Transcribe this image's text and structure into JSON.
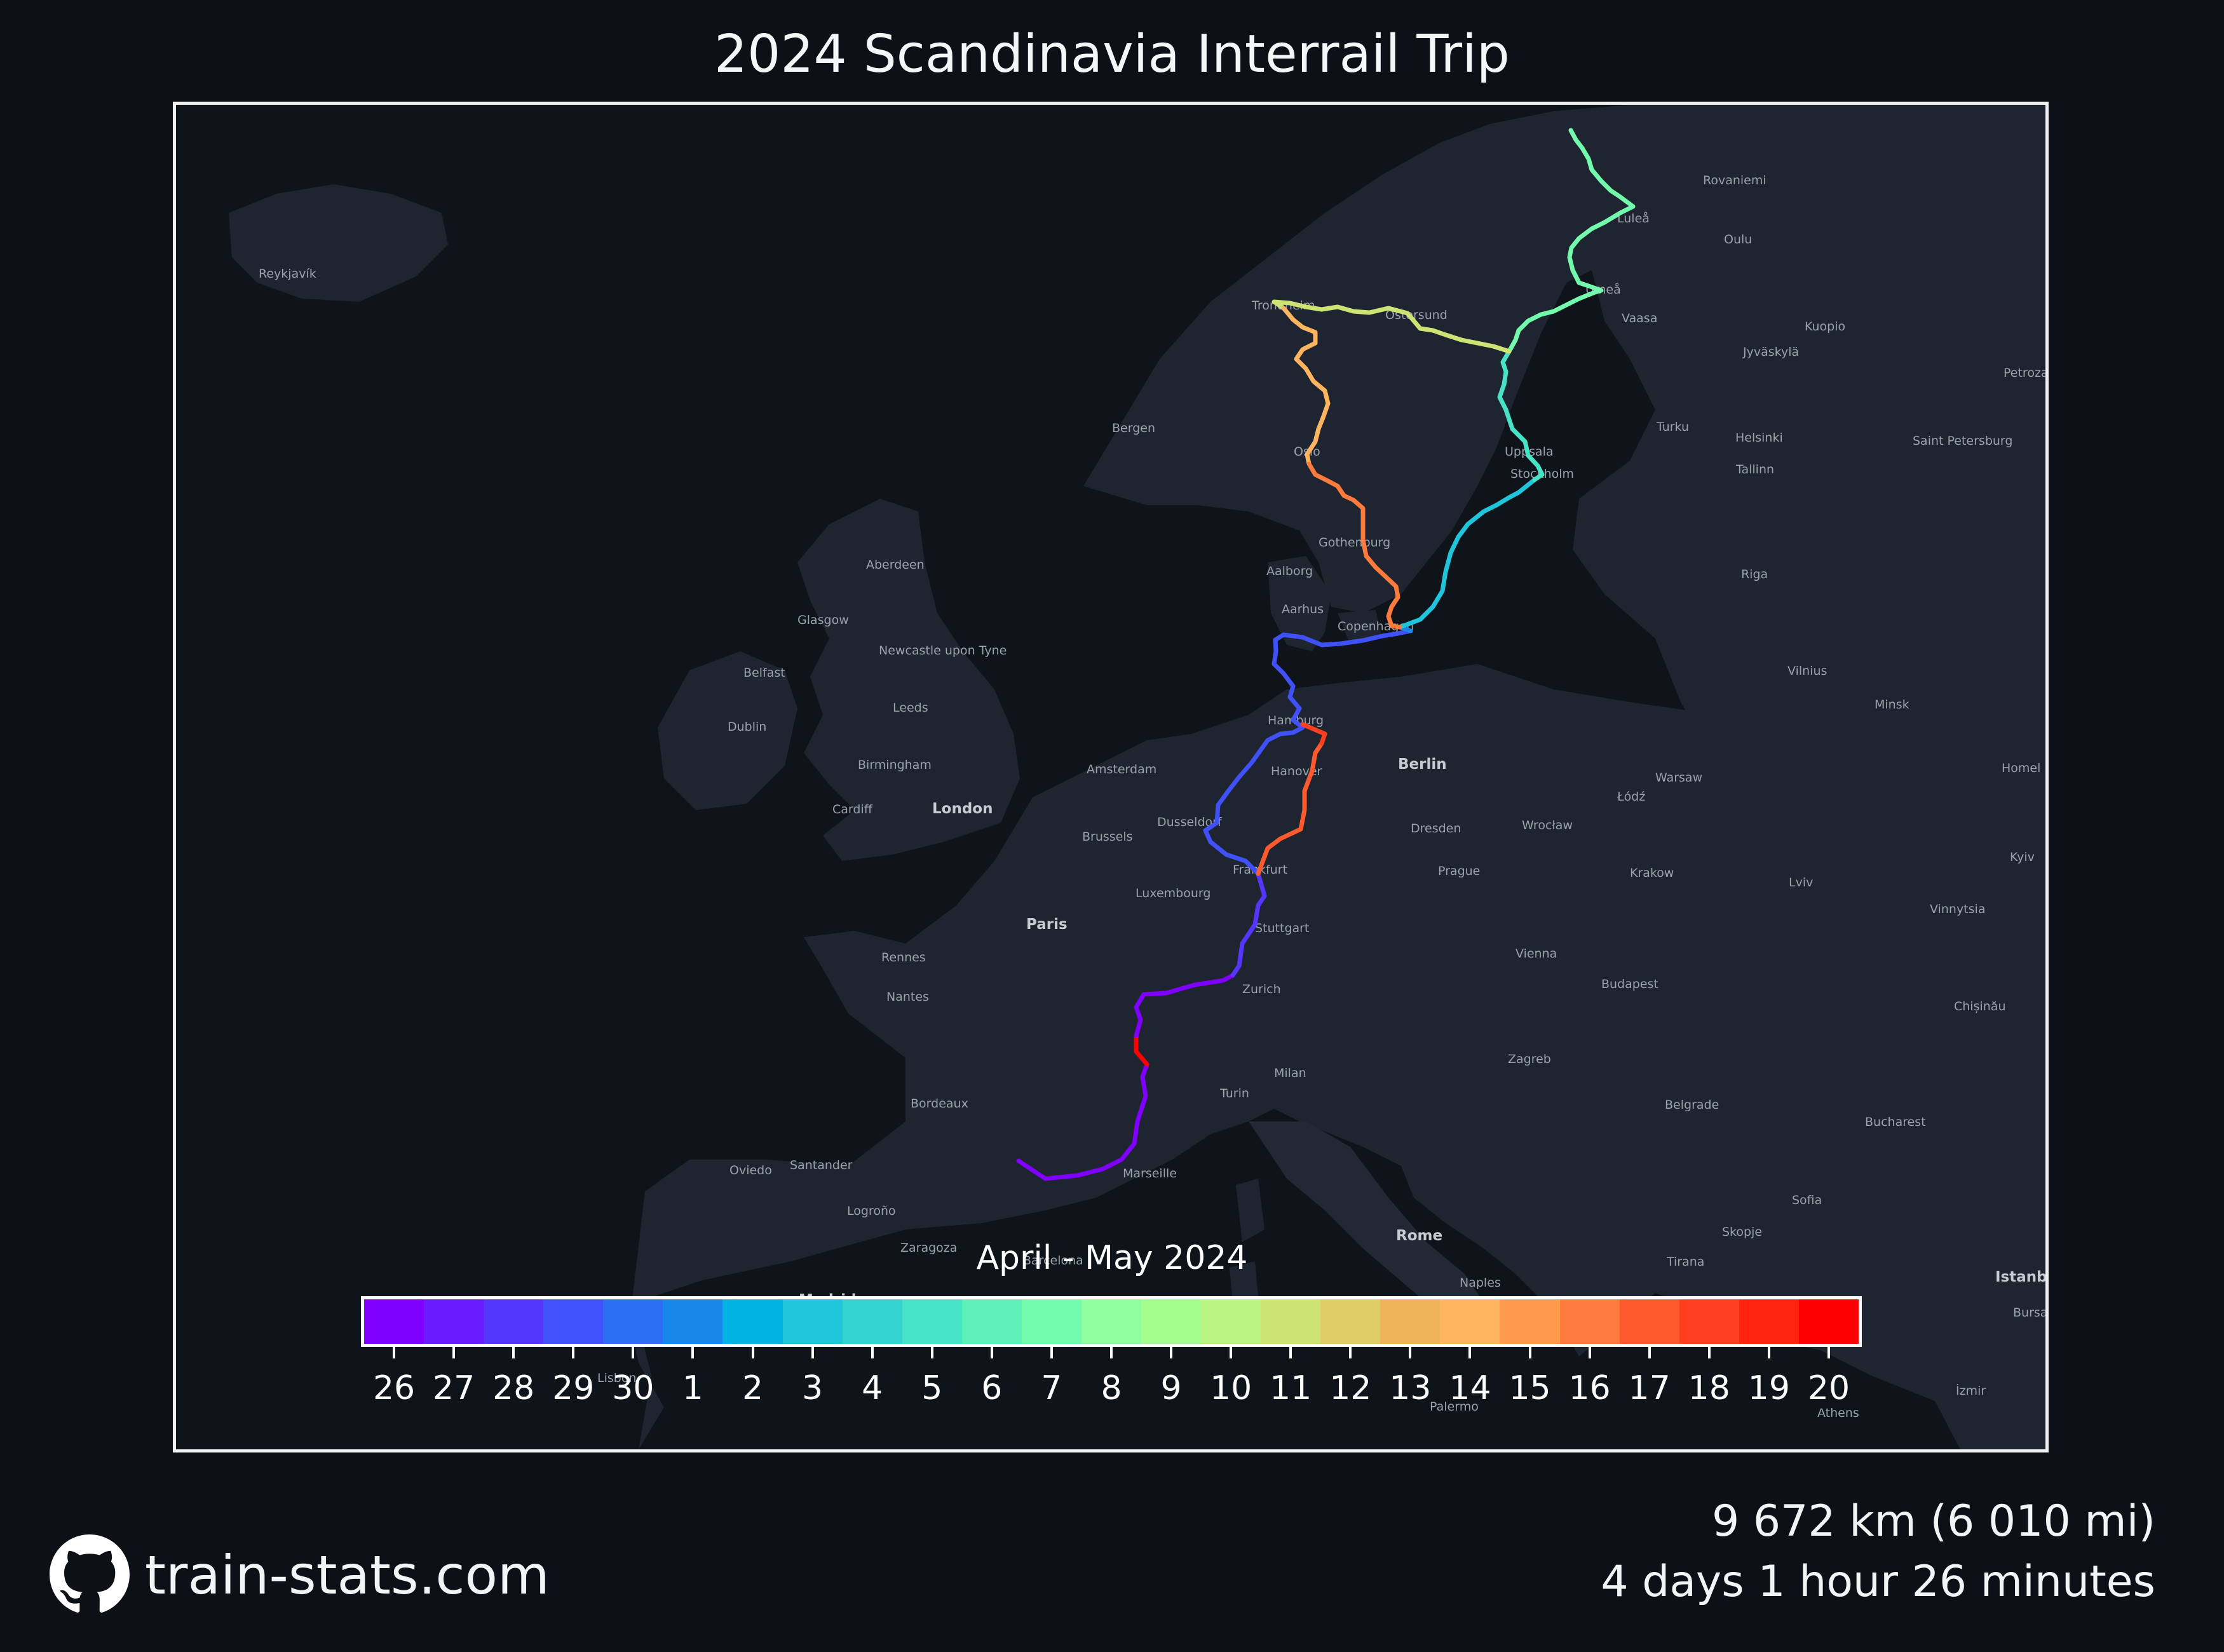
{
  "title": "2024 Scandinavia Interrail Trip",
  "legend": {
    "title": "April - May 2024",
    "ticks": [
      "26",
      "27",
      "28",
      "29",
      "30",
      "1",
      "2",
      "3",
      "4",
      "5",
      "6",
      "7",
      "8",
      "9",
      "10",
      "11",
      "12",
      "13",
      "14",
      "15",
      "16",
      "17",
      "18",
      "19",
      "20"
    ],
    "colors": [
      "#7f00ff",
      "#6a1cfe",
      "#5436fd",
      "#4051f9",
      "#2c6ff3",
      "#1887ec",
      "#01b2e3",
      "#1fc5da",
      "#33d4d1",
      "#47e3c6",
      "#5ef0b9",
      "#73fbad",
      "#8efe9f",
      "#a5fc8f",
      "#baf482",
      "#cde474",
      "#e0cc66",
      "#f0b35a",
      "#ffb460",
      "#ff9a4d",
      "#ff7a3d",
      "#ff5a2e",
      "#ff3f1f",
      "#ff2410",
      "#ff0000"
    ]
  },
  "cities": {
    "reykjavik": "Reykjavík",
    "bergen": "Bergen",
    "oslo": "Oslo",
    "trondheim": "Trondheim",
    "ostersund": "Östersund",
    "lulea": "Luleå",
    "oulu": "Oulu",
    "umea": "Umeå",
    "vaasa": "Vaasa",
    "kuopio": "Kuopio",
    "jyvaskyla": "Jyväskylä",
    "rovaniemi": "Rovaniemi",
    "turku": "Turku",
    "helsinki": "Helsinki",
    "tallinn": "Tallinn",
    "saint_petersburg": "Saint Petersburg",
    "petrozavodsk": "Petrozavodsk",
    "uppsala": "Uppsala",
    "stockholm": "Stockholm",
    "gothenburg": "Gothenburg",
    "aalborg": "Aalborg",
    "aarhus": "Aarhus",
    "copenhagen": "Copenhagen",
    "riga": "Riga",
    "vilnius": "Vilnius",
    "minsk": "Minsk",
    "aberdeen": "Aberdeen",
    "glasgow": "Glasgow",
    "newcastle": "Newcastle upon Tyne",
    "belfast": "Belfast",
    "dublin": "Dublin",
    "leeds": "Leeds",
    "birmingham": "Birmingham",
    "cardiff": "Cardiff",
    "london": "London",
    "amsterdam": "Amsterdam",
    "hamburg": "Hamburg",
    "hanover": "Hanover",
    "berlin": "Berlin",
    "warsaw": "Warsaw",
    "lodz": "Łódź",
    "homel": "Homel",
    "brussels": "Brussels",
    "dusseldorf": "Dusseldorf",
    "dresden": "Dresden",
    "wroclaw": "Wrocław",
    "frankfurt": "Frankfurt",
    "prague": "Prague",
    "krakow": "Krakow",
    "lviv": "Lviv",
    "kyiv": "Kyiv",
    "luxembourg": "Luxembourg",
    "paris": "Paris",
    "stuttgart": "Stuttgart",
    "vinnytsia": "Vinnytsia",
    "rennes": "Rennes",
    "vienna": "Vienna",
    "nantes": "Nantes",
    "zurich": "Zurich",
    "budapest": "Budapest",
    "chisinau": "Chișinău",
    "milan": "Milan",
    "zagreb": "Zagreb",
    "turin": "Turin",
    "bordeaux": "Bordeaux",
    "belgrade": "Belgrade",
    "bucharest": "Bucharest",
    "oviedo": "Oviedo",
    "santander": "Santander",
    "marseille": "Marseille",
    "sofia": "Sofia",
    "lugo": "Logroño",
    "rome": "Rome",
    "skopje": "Skopje",
    "zaragoza": "Zaragoza",
    "barcelona": "Barcelona",
    "tirana": "Tirana",
    "naples": "Naples",
    "madrid": "Madrid",
    "istanbul": "Istanbul",
    "bursa": "Bursa",
    "lisbon": "Lisbon",
    "palermo": "Palermo",
    "athens": "Athens",
    "izmir": "İzmir"
  },
  "footer": {
    "site": "train-stats.com",
    "distance": "9 672 km (6 010 mi)",
    "duration": "4 days 1 hour 26 minutes"
  }
}
